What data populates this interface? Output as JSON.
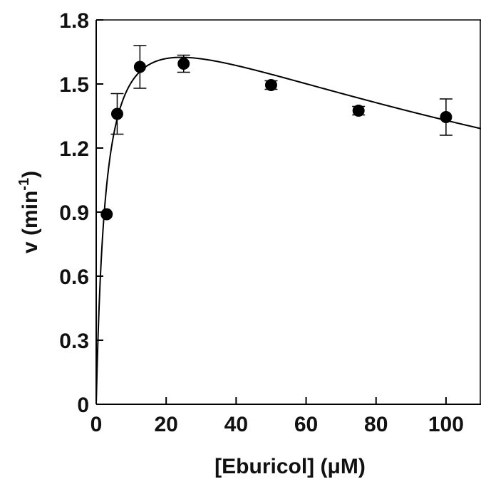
{
  "chart_data": {
    "type": "scatter",
    "xlabel": "[Eburicol] (μM)",
    "ylabel_main": "v (min",
    "ylabel_sup": "-1",
    "ylabel_close": ")",
    "xlim": [
      0,
      110
    ],
    "ylim": [
      0,
      1.8
    ],
    "x_ticks": [
      0,
      20,
      40,
      60,
      80,
      100
    ],
    "x_tick_labels": [
      "0",
      "20",
      "40",
      "60",
      "80",
      "100"
    ],
    "y_ticks": [
      0,
      0.3,
      0.6,
      0.9,
      1.2,
      1.5,
      1.8
    ],
    "y_tick_labels": [
      "0",
      "0.3",
      "0.6",
      "0.9",
      "1.2",
      "1.5",
      "1.8"
    ],
    "grid": false,
    "points": [
      {
        "x": 3,
        "y": 0.89,
        "err": 0
      },
      {
        "x": 6,
        "y": 1.36,
        "err": 0.095
      },
      {
        "x": 12.5,
        "y": 1.58,
        "err": 0.1
      },
      {
        "x": 25,
        "y": 1.595,
        "err": 0.04
      },
      {
        "x": 50,
        "y": 1.495,
        "err": 0.02
      },
      {
        "x": 75,
        "y": 1.375,
        "err": 0.02
      },
      {
        "x": 100,
        "y": 1.345,
        "err": 0.085
      }
    ],
    "fit_curve": {
      "model": "substrate_inhibition",
      "vmax": 2.0,
      "km": 2.8,
      "ki": 210
    },
    "colors": {
      "marker": "#000000",
      "line": "#000000",
      "axis": "#000000"
    }
  }
}
